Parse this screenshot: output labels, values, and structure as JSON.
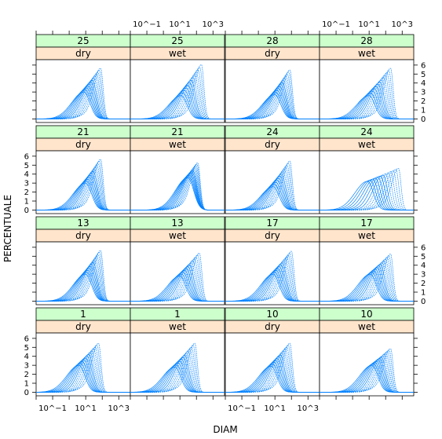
{
  "chart_data": {
    "type": "line",
    "layout": "lattice 4 x 4 panels, each with two strips (top: number, bottom: dry/wet)",
    "xlabel": "DIAM",
    "ylabel": "PERCENTUALE",
    "x_scale": "log10",
    "xlim": [
      0.01,
      5000
    ],
    "ylim": [
      -0.4,
      6.6
    ],
    "x_tick_labels": [
      "10^−1",
      "10^1",
      "10^3"
    ],
    "y_tick_labels": [
      "0",
      "1",
      "2",
      "3",
      "4",
      "5",
      "6"
    ],
    "curves_per_panel": 13,
    "colors": {
      "line": "#0080ff",
      "strip_top": "#ccffcc",
      "strip_bottom": "#ffe5cc",
      "frame": "#000000"
    },
    "panels": [
      {
        "row": 1,
        "col": 1,
        "strip_top": "25",
        "strip_bottom": "dry",
        "peak_low": {
          "diam": 8,
          "pct": 3.0
        },
        "peak_high": {
          "diam": 80,
          "pct": 5.6
        }
      },
      {
        "row": 1,
        "col": 2,
        "strip_top": "25",
        "strip_bottom": "wet",
        "peak_low": {
          "diam": 12,
          "pct": 2.6
        },
        "peak_high": {
          "diam": 200,
          "pct": 6.0
        }
      },
      {
        "row": 1,
        "col": 3,
        "strip_top": "28",
        "strip_bottom": "dry",
        "peak_low": {
          "diam": 10,
          "pct": 2.7
        },
        "peak_high": {
          "diam": 80,
          "pct": 5.4
        }
      },
      {
        "row": 1,
        "col": 4,
        "strip_top": "28",
        "strip_bottom": "wet",
        "peak_low": {
          "diam": 10,
          "pct": 2.6
        },
        "peak_high": {
          "diam": 200,
          "pct": 5.6
        }
      },
      {
        "row": 2,
        "col": 1,
        "strip_top": "21",
        "strip_bottom": "dry",
        "peak_low": {
          "diam": 10,
          "pct": 3.0
        },
        "peak_high": {
          "diam": 80,
          "pct": 5.6
        }
      },
      {
        "row": 2,
        "col": 2,
        "strip_top": "21",
        "strip_bottom": "wet",
        "peak_low": {
          "diam": 30,
          "pct": 3.6
        },
        "peak_high": {
          "diam": 120,
          "pct": 5.2
        }
      },
      {
        "row": 2,
        "col": 3,
        "strip_top": "24",
        "strip_bottom": "dry",
        "peak_low": {
          "diam": 8,
          "pct": 2.6
        },
        "peak_high": {
          "diam": 80,
          "pct": 5.4
        }
      },
      {
        "row": 2,
        "col": 4,
        "strip_top": "24",
        "strip_bottom": "wet",
        "peak_low": {
          "diam": 8,
          "pct": 3.2
        },
        "peak_high": {
          "diam": 600,
          "pct": 4.6
        }
      },
      {
        "row": 3,
        "col": 1,
        "strip_top": "13",
        "strip_bottom": "dry",
        "peak_low": {
          "diam": 10,
          "pct": 3.0
        },
        "peak_high": {
          "diam": 80,
          "pct": 5.6
        }
      },
      {
        "row": 3,
        "col": 2,
        "strip_top": "13",
        "strip_bottom": "wet",
        "peak_low": {
          "diam": 10,
          "pct": 2.8
        },
        "peak_high": {
          "diam": 150,
          "pct": 5.3
        }
      },
      {
        "row": 3,
        "col": 3,
        "strip_top": "17",
        "strip_bottom": "dry",
        "peak_low": {
          "diam": 8,
          "pct": 3.0
        },
        "peak_high": {
          "diam": 100,
          "pct": 5.5
        }
      },
      {
        "row": 3,
        "col": 4,
        "strip_top": "17",
        "strip_bottom": "wet",
        "peak_low": {
          "diam": 12,
          "pct": 3.0
        },
        "peak_high": {
          "diam": 200,
          "pct": 5.2
        }
      },
      {
        "row": 4,
        "col": 1,
        "strip_top": "1",
        "strip_bottom": "dry",
        "peak_low": {
          "diam": 4,
          "pct": 3.0
        },
        "peak_high": {
          "diam": 60,
          "pct": 5.4
        }
      },
      {
        "row": 4,
        "col": 2,
        "strip_top": "1",
        "strip_bottom": "wet",
        "peak_low": {
          "diam": 5,
          "pct": 2.8
        },
        "peak_high": {
          "diam": 80,
          "pct": 5.4
        }
      },
      {
        "row": 4,
        "col": 3,
        "strip_top": "10",
        "strip_bottom": "dry",
        "peak_low": {
          "diam": 6,
          "pct": 2.9
        },
        "peak_high": {
          "diam": 80,
          "pct": 5.4
        }
      },
      {
        "row": 4,
        "col": 4,
        "strip_top": "10",
        "strip_bottom": "wet",
        "peak_low": {
          "diam": 15,
          "pct": 3.0
        },
        "peak_high": {
          "diam": 200,
          "pct": 4.8
        }
      }
    ]
  }
}
